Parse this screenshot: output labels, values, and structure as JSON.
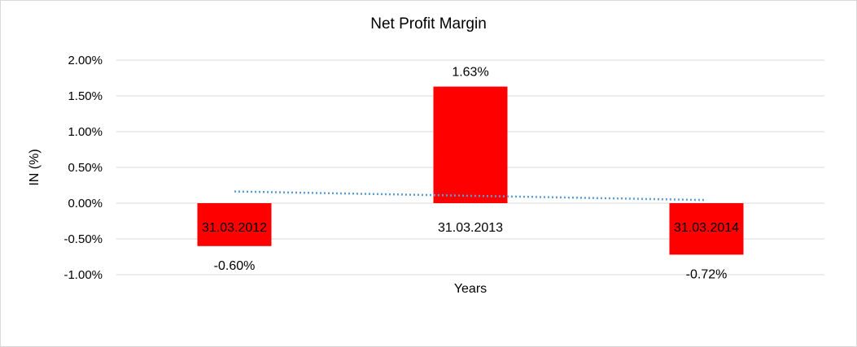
{
  "chart_data": {
    "type": "bar",
    "title": "Net Profit Margin",
    "xlabel": "Years",
    "ylabel": "IN (%)",
    "categories": [
      "31.03.2012",
      "31.03.2013",
      "31.03.2014"
    ],
    "series": [
      {
        "values": [
          -0.6,
          1.63,
          -0.72
        ],
        "color": "#ff0000"
      }
    ],
    "data_labels": [
      "-0.60%",
      "1.63%",
      "-0.72%"
    ],
    "trendline": {
      "type": "linear",
      "style": "dotted",
      "color": "#5b9bd5"
    },
    "ylim": [
      -1.0,
      2.0
    ],
    "yticks": [
      2.0,
      1.5,
      1.0,
      0.5,
      0.0,
      -0.5,
      -1.0
    ],
    "ytick_labels": [
      "2.00%",
      "1.50%",
      "1.00%",
      "0.50%",
      "0.00%",
      "-0.50%",
      "-1.00%"
    ],
    "grid": true,
    "legend": "none"
  }
}
